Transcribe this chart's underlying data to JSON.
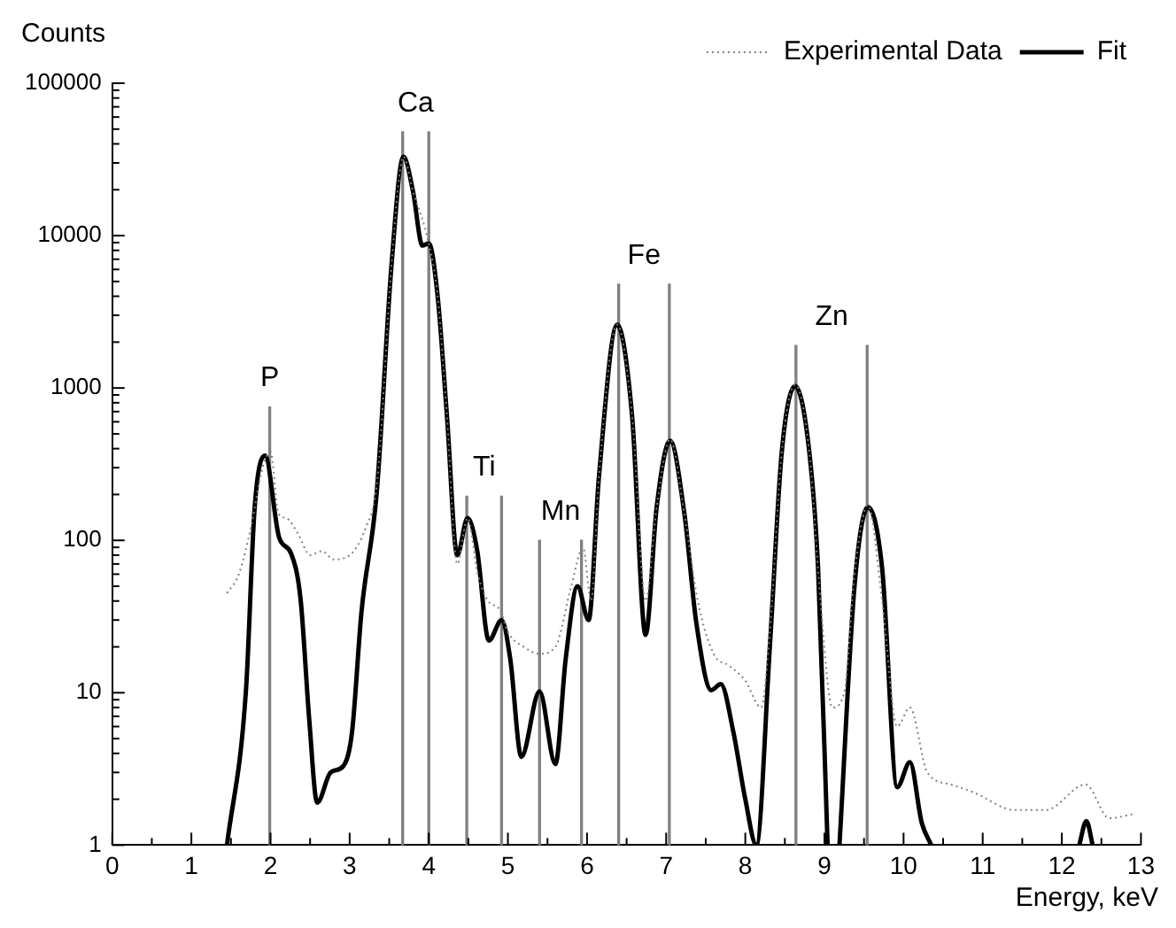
{
  "chart_data": {
    "type": "line",
    "xlabel": "Energy, keV",
    "ylabel": "Counts",
    "log": "y",
    "xlim": [
      0,
      13
    ],
    "ylim": [
      1,
      100000
    ],
    "xticks": [
      0,
      {
        "value": 0.5,
        "label": null
      },
      1,
      {
        "value": 1.5,
        "label": null
      },
      2,
      {
        "value": 2.5,
        "label": null
      },
      3,
      {
        "value": 3.5,
        "label": null
      },
      4,
      {
        "value": 4.5,
        "label": null
      },
      5,
      {
        "value": 5.5,
        "label": null
      },
      6,
      {
        "value": 6.5,
        "label": null
      },
      7,
      {
        "value": 7.5,
        "label": null
      },
      8,
      {
        "value": 8.5,
        "label": null
      },
      9,
      {
        "value": 9.5,
        "label": null
      },
      10,
      {
        "value": 10.5,
        "label": null
      },
      11,
      {
        "value": 11.5,
        "label": null
      },
      12,
      {
        "value": 12.5,
        "label": null
      },
      13
    ],
    "yticks": [
      1,
      {
        "value": 2,
        "label": null
      },
      {
        "value": 3,
        "label": null
      },
      {
        "value": 4,
        "label": null
      },
      {
        "value": 5,
        "label": null
      },
      {
        "value": 6,
        "label": null
      },
      {
        "value": 7,
        "label": null
      },
      {
        "value": 8,
        "label": null
      },
      {
        "value": 9,
        "label": null
      },
      10,
      {
        "value": 20,
        "label": null
      },
      {
        "value": 30,
        "label": null
      },
      {
        "value": 40,
        "label": null
      },
      {
        "value": 50,
        "label": null
      },
      {
        "value": 60,
        "label": null
      },
      {
        "value": 70,
        "label": null
      },
      {
        "value": 80,
        "label": null
      },
      {
        "value": 90,
        "label": null
      },
      100,
      {
        "value": 200,
        "label": null
      },
      {
        "value": 300,
        "label": null
      },
      {
        "value": 400,
        "label": null
      },
      {
        "value": 500,
        "label": null
      },
      {
        "value": 600,
        "label": null
      },
      {
        "value": 700,
        "label": null
      },
      {
        "value": 800,
        "label": null
      },
      {
        "value": 900,
        "label": null
      },
      1000,
      {
        "value": 2000,
        "label": null
      },
      {
        "value": 3000,
        "label": null
      },
      {
        "value": 4000,
        "label": null
      },
      {
        "value": 5000,
        "label": null
      },
      {
        "value": 6000,
        "label": null
      },
      {
        "value": 7000,
        "label": null
      },
      {
        "value": 8000,
        "label": null
      },
      {
        "value": 9000,
        "label": null
      },
      10000,
      {
        "value": 20000,
        "label": null
      },
      {
        "value": 30000,
        "label": null
      },
      {
        "value": 40000,
        "label": null
      },
      {
        "value": 50000,
        "label": null
      },
      {
        "value": 60000,
        "label": null
      },
      {
        "value": 70000,
        "label": null
      },
      {
        "value": 80000,
        "label": null
      },
      {
        "value": 90000,
        "label": null
      },
      100000
    ],
    "grid": false,
    "legend": "top right",
    "marker": "none",
    "series": [
      {
        "name": "Experimental Data",
        "line_style": "dotted",
        "color": "#808080",
        "x": [
          1.45,
          1.6,
          1.75,
          1.9,
          2.0,
          2.1,
          2.2,
          2.35,
          2.5,
          2.65,
          2.8,
          3.0,
          3.2,
          3.35,
          3.53,
          3.68,
          3.8,
          4.0,
          4.11,
          4.23,
          4.36,
          4.49,
          4.62,
          4.75,
          4.9,
          5.0,
          5.2,
          5.4,
          5.6,
          5.8,
          5.95,
          6.05,
          6.15,
          6.38,
          6.57,
          6.74,
          6.88,
          7.05,
          7.23,
          7.4,
          7.6,
          7.8,
          8.0,
          8.2,
          8.31,
          8.46,
          8.63,
          8.81,
          8.95,
          9.1,
          9.25,
          9.38,
          9.55,
          9.73,
          9.92,
          10.08,
          10.3,
          10.6,
          10.9,
          11.4,
          11.8,
          12.3,
          12.6,
          12.9
        ],
        "values": [
          45,
          60,
          120,
          300,
          380,
          150,
          140,
          110,
          80,
          85,
          75,
          80,
          120,
          250,
          6500,
          33000,
          19600,
          8900,
          4100,
          650,
          70,
          140,
          60,
          40,
          35,
          25,
          20,
          18,
          20,
          50,
          90,
          40,
          260,
          2600,
          650,
          40,
          165,
          460,
          150,
          40,
          18,
          15,
          12,
          8,
          25,
          375,
          1050,
          375,
          40,
          8,
          10,
          60,
          170,
          40,
          6,
          8,
          3,
          2.5,
          2.2,
          1.7,
          1.7,
          2.5,
          1.5,
          1.6
        ]
      },
      {
        "name": "Fit",
        "line_style": "solid",
        "color": "#000000",
        "x": [
          1.45,
          1.69,
          1.8,
          1.93,
          2.11,
          2.26,
          2.38,
          2.49,
          2.59,
          2.76,
          2.92,
          3.03,
          3.15,
          3.34,
          3.53,
          3.68,
          3.8,
          3.92,
          4.0,
          4.11,
          4.23,
          4.36,
          4.49,
          4.61,
          4.76,
          4.92,
          5.03,
          5.17,
          5.4,
          5.6,
          5.73,
          5.88,
          6.02,
          6.15,
          6.38,
          6.57,
          6.74,
          6.88,
          7.05,
          7.23,
          7.38,
          7.57,
          7.69,
          7.85,
          8.0,
          8.14,
          8.31,
          8.46,
          8.63,
          8.81,
          8.92,
          9.04,
          9.1,
          9.19,
          9.38,
          9.55,
          9.73,
          9.92,
          10.08,
          10.23,
          10.35,
          11.0,
          12.22,
          12.31,
          12.39
        ],
        "values": [
          1,
          10.4,
          165,
          360,
          104,
          82,
          41,
          6.6,
          1.9,
          3.0,
          3.3,
          5.5,
          34,
          200,
          6500,
          33000,
          19600,
          8600,
          8900,
          4100,
          650,
          80,
          140,
          87,
          22,
          30,
          16.6,
          3.8,
          10.2,
          3.4,
          16.6,
          50,
          30,
          260,
          2600,
          650,
          24,
          165,
          450,
          150,
          29,
          10.4,
          11.4,
          5.5,
          2.0,
          1,
          20,
          375,
          1030,
          375,
          65,
          1,
          null,
          1,
          50,
          165,
          65,
          2.4,
          3.5,
          1.4,
          1,
          null,
          1,
          1.44,
          1
        ]
      },
      {
        "type": "bar",
        "color": "#808080",
        "x": [
          1.99,
          3.67,
          4.0,
          4.48,
          4.92,
          5.4,
          5.93,
          6.4,
          7.04,
          8.64,
          9.54
        ],
        "values": [
          750,
          48000,
          48000,
          195,
          195,
          100,
          100,
          4800,
          4800,
          1900,
          1900
        ]
      }
    ],
    "annotations": [
      {
        "text": "P",
        "x": 1.99,
        "y": 750
      },
      {
        "text": "Ca",
        "x": 3.67,
        "y": 48000
      },
      {
        "text": "Ti",
        "x": 4.48,
        "y": 195
      },
      {
        "text": "Mn",
        "x": 5.4,
        "y": 100
      },
      {
        "text": "Fe",
        "x": 6.4,
        "y": 4800
      },
      {
        "text": "Zn",
        "x": 8.64,
        "y": 1900
      }
    ]
  }
}
